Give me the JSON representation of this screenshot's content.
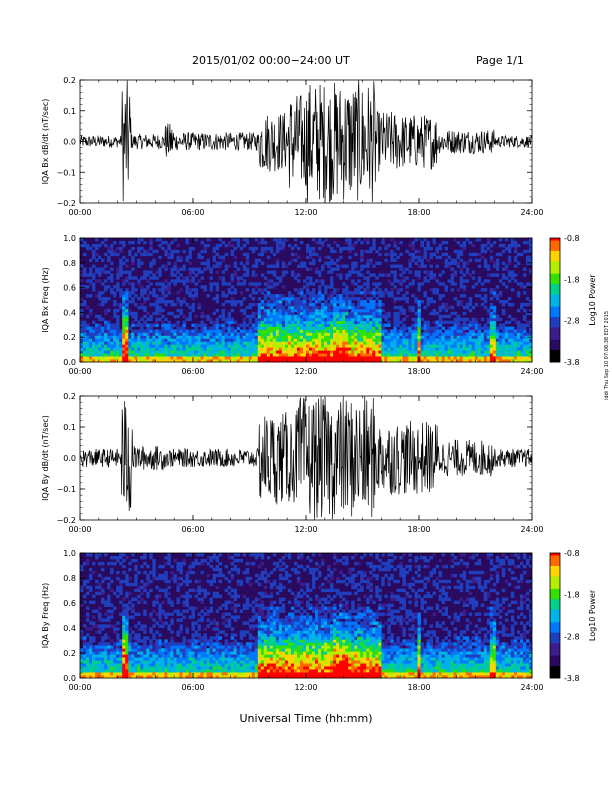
{
  "header": {
    "date_range": "2015/01/02  00:00−24:00 UT",
    "page": "Page 1/1"
  },
  "side_note": "iddi Thu Sep 10 07:08:38 EDT 2015",
  "x_axis_label": "Universal Time (hh:mm)",
  "colors": {
    "trace": "#000000",
    "colormap": [
      "#000000",
      "#2a0a5e",
      "#3b1d8c",
      "#1f3fbf",
      "#0077ff",
      "#00b3e6",
      "#00d08a",
      "#33e000",
      "#b4ee00",
      "#ffd400",
      "#ff6a00",
      "#ff0000"
    ]
  },
  "chart_data": [
    {
      "type": "line",
      "id": "bx-dbdt",
      "ylabel": "IQA Bx dB/dt (nT/sec)",
      "xlim": [
        0,
        24
      ],
      "ylim": [
        -0.2,
        0.2
      ],
      "x_ticks": [
        "00:00",
        "06:00",
        "12:00",
        "18:00",
        "24:00"
      ],
      "y_ticks": [
        "0.2",
        "0.1",
        "0.0",
        "−0.1",
        "−0.2"
      ],
      "activity": [
        {
          "start": 0,
          "end": 2.2,
          "amplitude": 0.02
        },
        {
          "start": 2.2,
          "end": 2.7,
          "amplitude": 0.2
        },
        {
          "start": 2.7,
          "end": 4.5,
          "amplitude": 0.025
        },
        {
          "start": 4.5,
          "end": 5.0,
          "amplitude": 0.06
        },
        {
          "start": 5.0,
          "end": 9.5,
          "amplitude": 0.03
        },
        {
          "start": 9.5,
          "end": 11.0,
          "amplitude": 0.1
        },
        {
          "start": 11.0,
          "end": 12.0,
          "amplitude": 0.16
        },
        {
          "start": 12.0,
          "end": 15.7,
          "amplitude": 0.2
        },
        {
          "start": 15.7,
          "end": 17.0,
          "amplitude": 0.1
        },
        {
          "start": 17.0,
          "end": 19.0,
          "amplitude": 0.09
        },
        {
          "start": 19.0,
          "end": 22.0,
          "amplitude": 0.04
        },
        {
          "start": 22.0,
          "end": 24.0,
          "amplitude": 0.02
        }
      ]
    },
    {
      "type": "heatmap",
      "id": "bx-spectrogram",
      "ylabel": "IQA Bx Freq (Hz)",
      "xlim": [
        0,
        24
      ],
      "ylim": [
        0,
        1.0
      ],
      "x_ticks": [
        "00:00",
        "06:00",
        "12:00",
        "18:00",
        "24:00"
      ],
      "y_ticks": [
        "1.0",
        "0.8",
        "0.6",
        "0.4",
        "0.2",
        "0.0"
      ],
      "colorbar": {
        "label": "Log10 Power",
        "range": [
          -3.8,
          -0.8
        ],
        "ticks": [
          "-0.8",
          "-1.8",
          "-2.8",
          "-3.8"
        ]
      },
      "enhancements": [
        {
          "start": 2.3,
          "end": 2.6,
          "level": 0.7
        },
        {
          "start": 9.5,
          "end": 16.0,
          "level": 0.45
        },
        {
          "start": 13.5,
          "end": 14.2,
          "level": 0.6
        },
        {
          "start": 17.9,
          "end": 18.1,
          "level": 0.55
        },
        {
          "start": 21.8,
          "end": 22.0,
          "level": 0.4
        }
      ]
    },
    {
      "type": "line",
      "id": "by-dbdt",
      "ylabel": "IQA By dB/dt (nT/sec)",
      "xlim": [
        0,
        24
      ],
      "ylim": [
        -0.2,
        0.2
      ],
      "x_ticks": [
        "00:00",
        "06:00",
        "12:00",
        "18:00",
        "24:00"
      ],
      "y_ticks": [
        "0.2",
        "0.1",
        "0.0",
        "−0.1",
        "−0.2"
      ],
      "activity": [
        {
          "start": 0,
          "end": 2.2,
          "amplitude": 0.03
        },
        {
          "start": 2.2,
          "end": 2.8,
          "amplitude": 0.2
        },
        {
          "start": 2.8,
          "end": 4.5,
          "amplitude": 0.04
        },
        {
          "start": 4.5,
          "end": 9.5,
          "amplitude": 0.03
        },
        {
          "start": 9.5,
          "end": 11.5,
          "amplitude": 0.15
        },
        {
          "start": 11.5,
          "end": 15.7,
          "amplitude": 0.2
        },
        {
          "start": 15.7,
          "end": 19.0,
          "amplitude": 0.12
        },
        {
          "start": 19.0,
          "end": 22.0,
          "amplitude": 0.06
        },
        {
          "start": 22.0,
          "end": 24.0,
          "amplitude": 0.03
        }
      ]
    },
    {
      "type": "heatmap",
      "id": "by-spectrogram",
      "ylabel": "IQA By Freq (Hz)",
      "xlim": [
        0,
        24
      ],
      "ylim": [
        0,
        1.0
      ],
      "x_ticks": [
        "00:00",
        "06:00",
        "12:00",
        "18:00",
        "24:00"
      ],
      "y_ticks": [
        "1.0",
        "0.8",
        "0.6",
        "0.4",
        "0.2",
        "0.0"
      ],
      "colorbar": {
        "label": "Log10 Power",
        "range": [
          -3.8,
          -0.8
        ],
        "ticks": [
          "-0.8",
          "-1.8",
          "-2.8",
          "-3.8"
        ]
      },
      "enhancements": [
        {
          "start": 2.3,
          "end": 2.6,
          "level": 0.75
        },
        {
          "start": 9.5,
          "end": 16.0,
          "level": 0.5
        },
        {
          "start": 13.4,
          "end": 14.3,
          "level": 0.7
        },
        {
          "start": 17.9,
          "end": 18.1,
          "level": 0.55
        },
        {
          "start": 21.8,
          "end": 22.0,
          "level": 0.45
        }
      ]
    }
  ]
}
